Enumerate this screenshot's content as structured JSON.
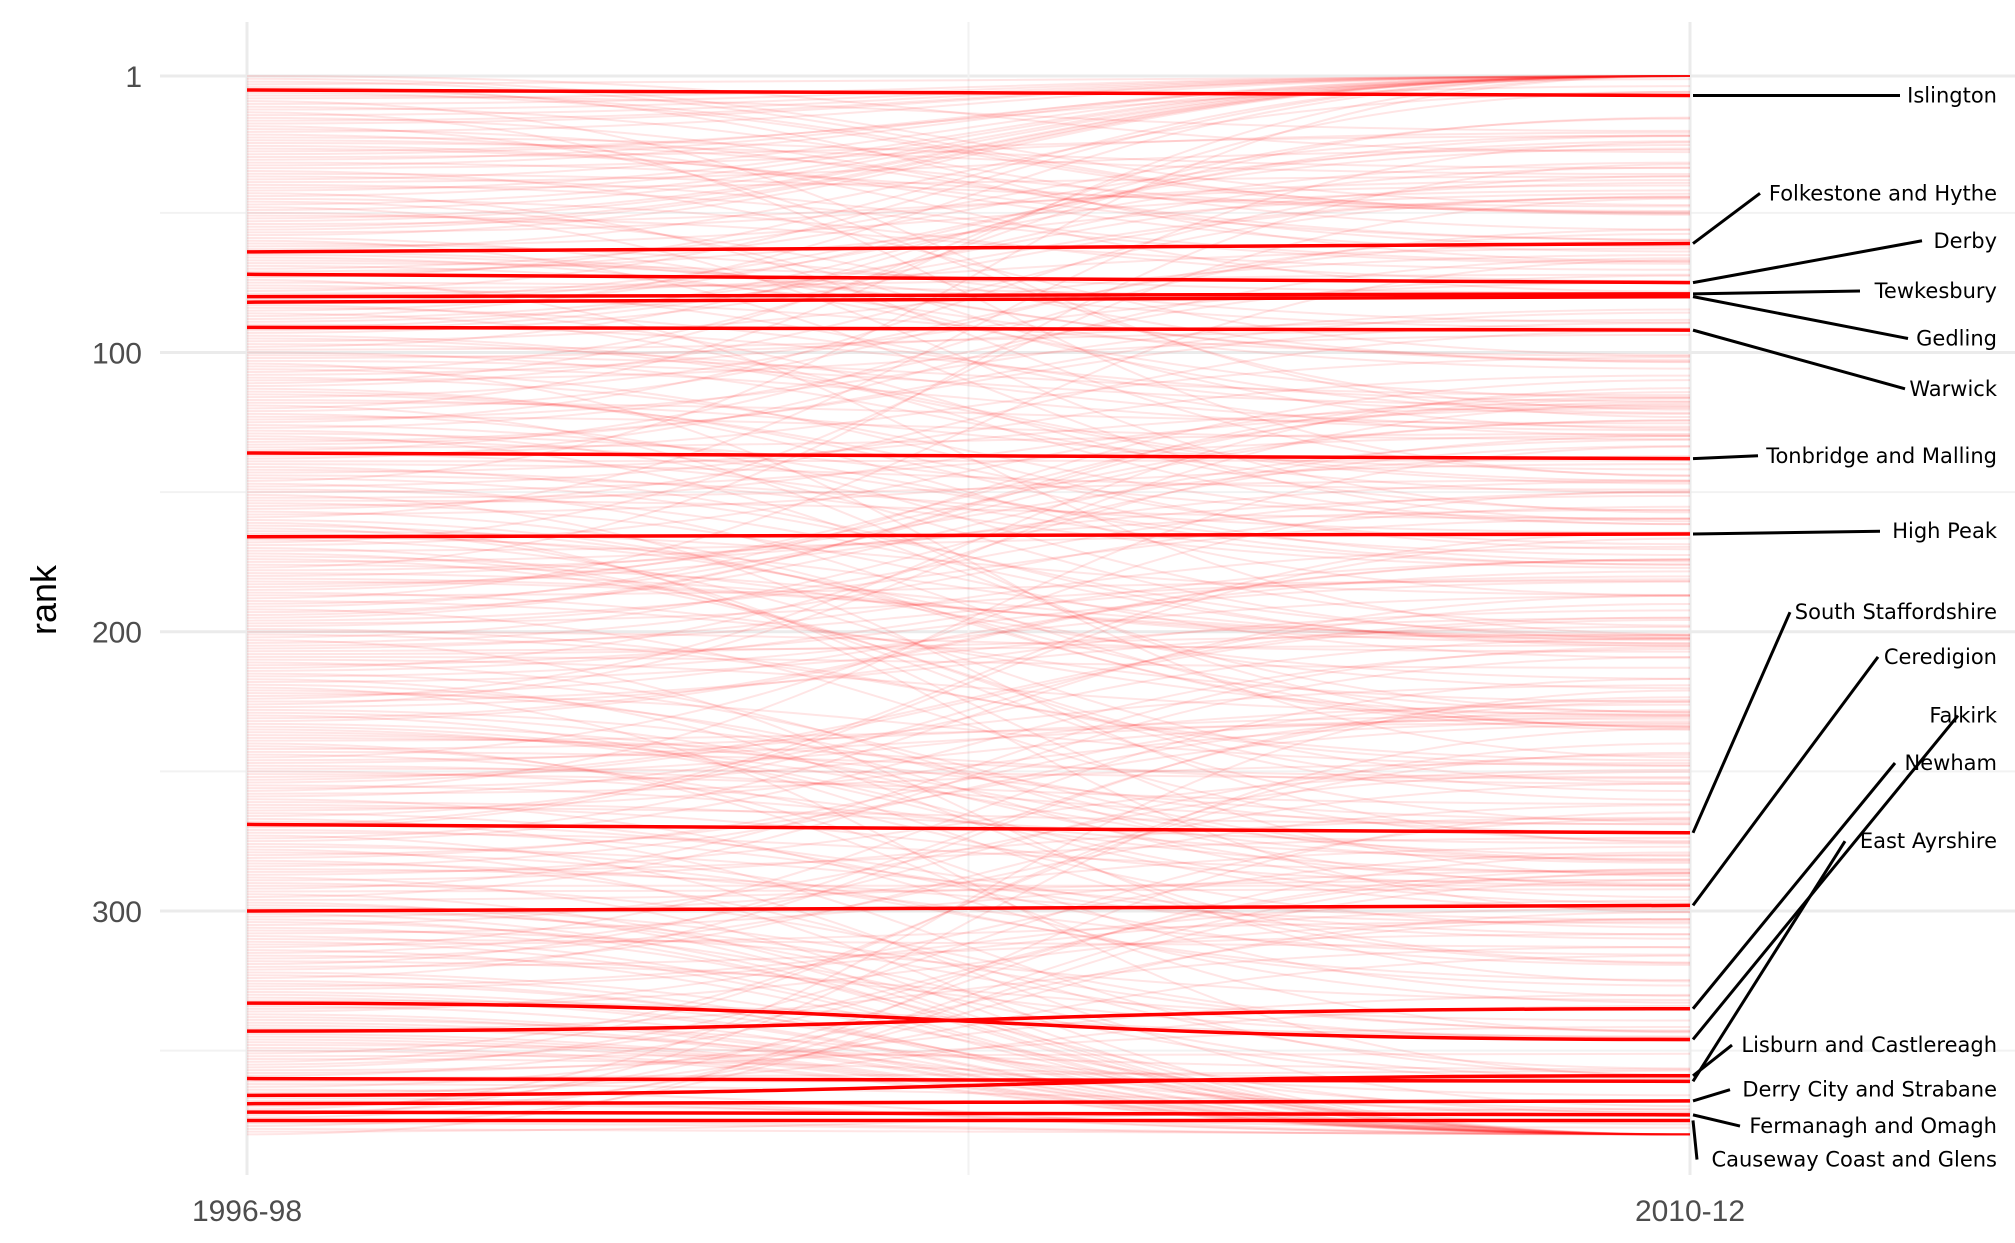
{
  "chart_data": {
    "type": "line",
    "subtype": "bump-chart",
    "x": [
      "1996-98",
      "2010-12"
    ],
    "ylabel": "rank",
    "xlabel": "",
    "y_ticks": [
      1,
      100,
      200,
      300
    ],
    "ylim": [
      1,
      380
    ],
    "y_reversed": true,
    "grid": true,
    "background_series_count": 380,
    "background_color": "#ff0000",
    "highlight_color": "#ff0000",
    "leader_color": "#000000",
    "highlighted": [
      {
        "name": "Islington",
        "rank_1996_98": 6,
        "rank_2010_12": 8
      },
      {
        "name": "Folkestone and Hythe",
        "rank_1996_98": 64,
        "rank_2010_12": 61
      },
      {
        "name": "Derby",
        "rank_1996_98": 72,
        "rank_2010_12": 75
      },
      {
        "name": "Tewkesbury",
        "rank_1996_98": 80,
        "rank_2010_12": 79
      },
      {
        "name": "Gedling",
        "rank_1996_98": 82,
        "rank_2010_12": 80
      },
      {
        "name": "Warwick",
        "rank_1996_98": 91,
        "rank_2010_12": 92
      },
      {
        "name": "Tonbridge and Malling",
        "rank_1996_98": 136,
        "rank_2010_12": 138
      },
      {
        "name": "High Peak",
        "rank_1996_98": 166,
        "rank_2010_12": 165
      },
      {
        "name": "South Staffordshire",
        "rank_1996_98": 269,
        "rank_2010_12": 272
      },
      {
        "name": "Ceredigion",
        "rank_1996_98": 300,
        "rank_2010_12": 298
      },
      {
        "name": "Falkirk",
        "rank_1996_98": 333,
        "rank_2010_12": 346
      },
      {
        "name": "Newham",
        "rank_1996_98": 343,
        "rank_2010_12": 335
      },
      {
        "name": "East Ayrshire",
        "rank_1996_98": 360,
        "rank_2010_12": 361
      },
      {
        "name": "Lisburn and Castlereagh",
        "rank_1996_98": 366,
        "rank_2010_12": 359
      },
      {
        "name": "Derry City and Strabane",
        "rank_1996_98": 369,
        "rank_2010_12": 368
      },
      {
        "name": "Fermanagh and Omagh",
        "rank_1996_98": 372,
        "rank_2010_12": 373
      },
      {
        "name": "Causeway Coast and Glens",
        "rank_1996_98": 375,
        "rank_2010_12": 375
      }
    ]
  }
}
